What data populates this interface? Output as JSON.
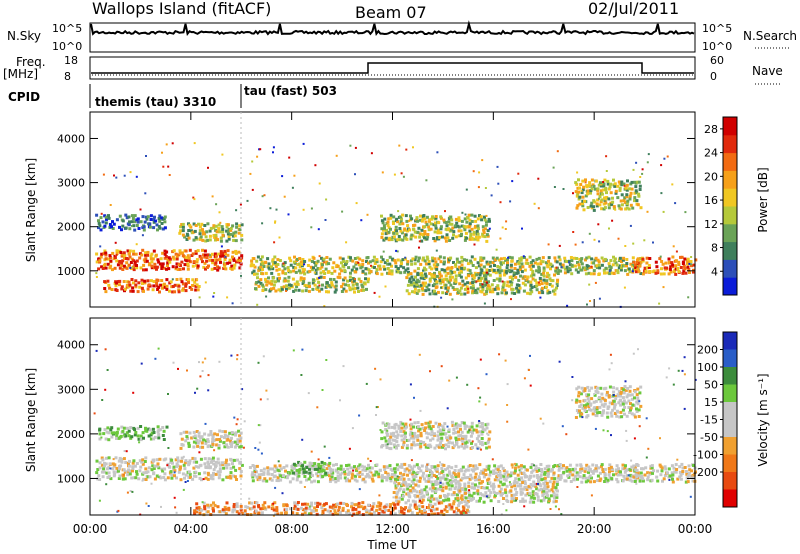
{
  "header": {
    "station": "Wallops Island (fitACF)",
    "beam": "Beam 07",
    "date": "02/Jul/2011"
  },
  "aux": {
    "nsky_label": "N.Sky",
    "nsky_ticks": [
      "10^5",
      "10^0"
    ],
    "nsearch_label": "N.Search",
    "nsearch_ticks": [
      "10^5",
      "10^0"
    ],
    "freq_label": "Freq.",
    "freq_unit": "[MHz]",
    "freq_ticks": [
      "18",
      "8"
    ],
    "nave_label": "Nave",
    "nave_ticks": [
      "60",
      "0"
    ],
    "cpid_label": "CPID",
    "cpid_modes": [
      {
        "name": "themis (tau) 3310",
        "start": "00:00"
      },
      {
        "name": "tau (fast) 503",
        "start": "06:00"
      }
    ]
  },
  "chart_data": [
    {
      "type": "heatmap",
      "panel": "power",
      "ylabel": "Slant Range [km]",
      "xlabel": "",
      "y_ticks": [
        1000,
        2000,
        3000,
        4000
      ],
      "ylim": [
        180,
        4600
      ],
      "x_ticks": [
        "00:00",
        "04:00",
        "08:00",
        "12:00",
        "16:00",
        "20:00",
        "00:00"
      ],
      "colorbar": {
        "label": "Power [dB]",
        "ticks": [
          4,
          8,
          12,
          16,
          20,
          24,
          28
        ],
        "colors": [
          "#0b1cd8",
          "#2d4fb8",
          "#3f7f5c",
          "#6aa357",
          "#b5c93a",
          "#f0c722",
          "#f6a019",
          "#f26b12",
          "#e12a0c",
          "#d00000"
        ]
      },
      "bands": [
        {
          "t0": 0.2,
          "t1": 6.0,
          "r0": 1050,
          "r1": 1500,
          "level": "high"
        },
        {
          "t0": 0.5,
          "t1": 4.3,
          "r0": 550,
          "r1": 850,
          "level": "high"
        },
        {
          "t0": 0.2,
          "t1": 3.0,
          "r0": 1950,
          "r1": 2300,
          "level": "low"
        },
        {
          "t0": 3.5,
          "t1": 6.0,
          "r0": 1700,
          "r1": 2100,
          "level": "mid"
        },
        {
          "t0": 6.3,
          "t1": 21.8,
          "r0": 950,
          "r1": 1350,
          "level": "mid"
        },
        {
          "t0": 6.5,
          "t1": 11.0,
          "r0": 550,
          "r1": 900,
          "level": "mid"
        },
        {
          "t0": 12.5,
          "t1": 18.5,
          "r0": 500,
          "r1": 950,
          "level": "mid"
        },
        {
          "t0": 11.5,
          "t1": 15.8,
          "r0": 1700,
          "r1": 2300,
          "level": "mid"
        },
        {
          "t0": 19.2,
          "t1": 21.8,
          "r0": 2400,
          "r1": 3100,
          "level": "mid"
        },
        {
          "t0": 21.5,
          "t1": 24.0,
          "r0": 950,
          "r1": 1350,
          "level": "high"
        }
      ]
    },
    {
      "type": "heatmap",
      "panel": "velocity",
      "ylabel": "Slant Range [km]",
      "xlabel": "Time UT",
      "y_ticks": [
        1000,
        2000,
        3000,
        4000
      ],
      "ylim": [
        180,
        4600
      ],
      "x_ticks": [
        "00:00",
        "04:00",
        "08:00",
        "12:00",
        "16:00",
        "20:00",
        "00:00"
      ],
      "colorbar": {
        "label": "Velocity [m s⁻¹]",
        "ticks": [
          200,
          100,
          50,
          15,
          -15,
          -50,
          -100,
          -200
        ],
        "colors": [
          "#1a2ab8",
          "#2a5ec8",
          "#3c8c3c",
          "#6cc83c",
          "#c6c6c6",
          "#c6c6c6",
          "#f0a030",
          "#f07818",
          "#e84a10",
          "#e00000"
        ]
      },
      "bands": [
        {
          "t0": 0.2,
          "t1": 6.0,
          "r0": 1000,
          "r1": 1500,
          "level": "gray"
        },
        {
          "t0": 0.3,
          "t1": 3.0,
          "r0": 1900,
          "r1": 2200,
          "level": "green"
        },
        {
          "t0": 3.5,
          "t1": 6.0,
          "r0": 1700,
          "r1": 2100,
          "level": "gray"
        },
        {
          "t0": 6.3,
          "t1": 21.8,
          "r0": 950,
          "r1": 1350,
          "level": "gray"
        },
        {
          "t0": 8.0,
          "t1": 9.5,
          "r0": 1150,
          "r1": 1400,
          "level": "green"
        },
        {
          "t0": 11.5,
          "t1": 15.8,
          "r0": 1700,
          "r1": 2300,
          "level": "gray"
        },
        {
          "t0": 12.0,
          "t1": 18.5,
          "r0": 500,
          "r1": 950,
          "level": "gray"
        },
        {
          "t0": 19.2,
          "t1": 21.8,
          "r0": 2400,
          "r1": 3100,
          "level": "gray"
        },
        {
          "t0": 4.0,
          "t1": 15.0,
          "r0": 220,
          "r1": 500,
          "level": "orange"
        },
        {
          "t0": 21.5,
          "t1": 24.0,
          "r0": 950,
          "r1": 1350,
          "level": "gray"
        }
      ]
    }
  ]
}
